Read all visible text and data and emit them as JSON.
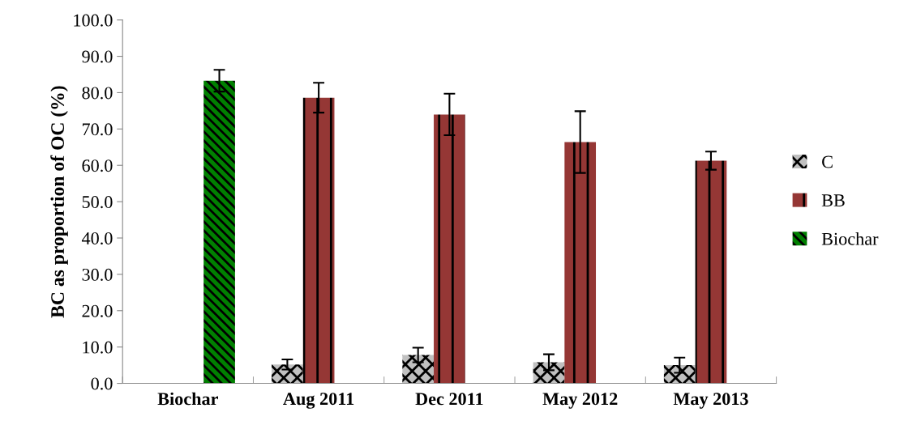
{
  "chart_data": {
    "type": "bar",
    "ylabel": "BC as proportion of OC (%)",
    "categories": [
      "Biochar",
      "Aug 2011",
      "Dec 2011",
      "May 2012",
      "May 2013"
    ],
    "series": [
      {
        "name": "C",
        "color": "#c0c0c0",
        "values": [
          null,
          5.2,
          7.8,
          5.8,
          5.0
        ],
        "errors": [
          null,
          1.4,
          2.0,
          2.2,
          2.1
        ]
      },
      {
        "name": "BB",
        "color": "#953735",
        "values": [
          null,
          78.6,
          74.0,
          66.4,
          61.3
        ],
        "errors": [
          null,
          4.1,
          5.7,
          8.5,
          2.5
        ]
      },
      {
        "name": "Biochar",
        "color": "#008000",
        "values": [
          83.3,
          null,
          null,
          null,
          null
        ],
        "errors": [
          3.0,
          null,
          null,
          null,
          null
        ]
      }
    ],
    "ylim": [
      0,
      100
    ],
    "yticks": [
      {
        "value": 0,
        "label": "0.0"
      },
      {
        "value": 10,
        "label": "10.0"
      },
      {
        "value": 20,
        "label": "20.0"
      },
      {
        "value": 30,
        "label": "30.0"
      },
      {
        "value": 40,
        "label": "40.0"
      },
      {
        "value": 50,
        "label": "50.0"
      },
      {
        "value": 60,
        "label": "60.0"
      },
      {
        "value": 70,
        "label": "70.0"
      },
      {
        "value": 80,
        "label": "80.0"
      },
      {
        "value": 90,
        "label": "90.0"
      },
      {
        "value": 100,
        "label": "100.0"
      }
    ],
    "grid": false,
    "legend": "right"
  }
}
